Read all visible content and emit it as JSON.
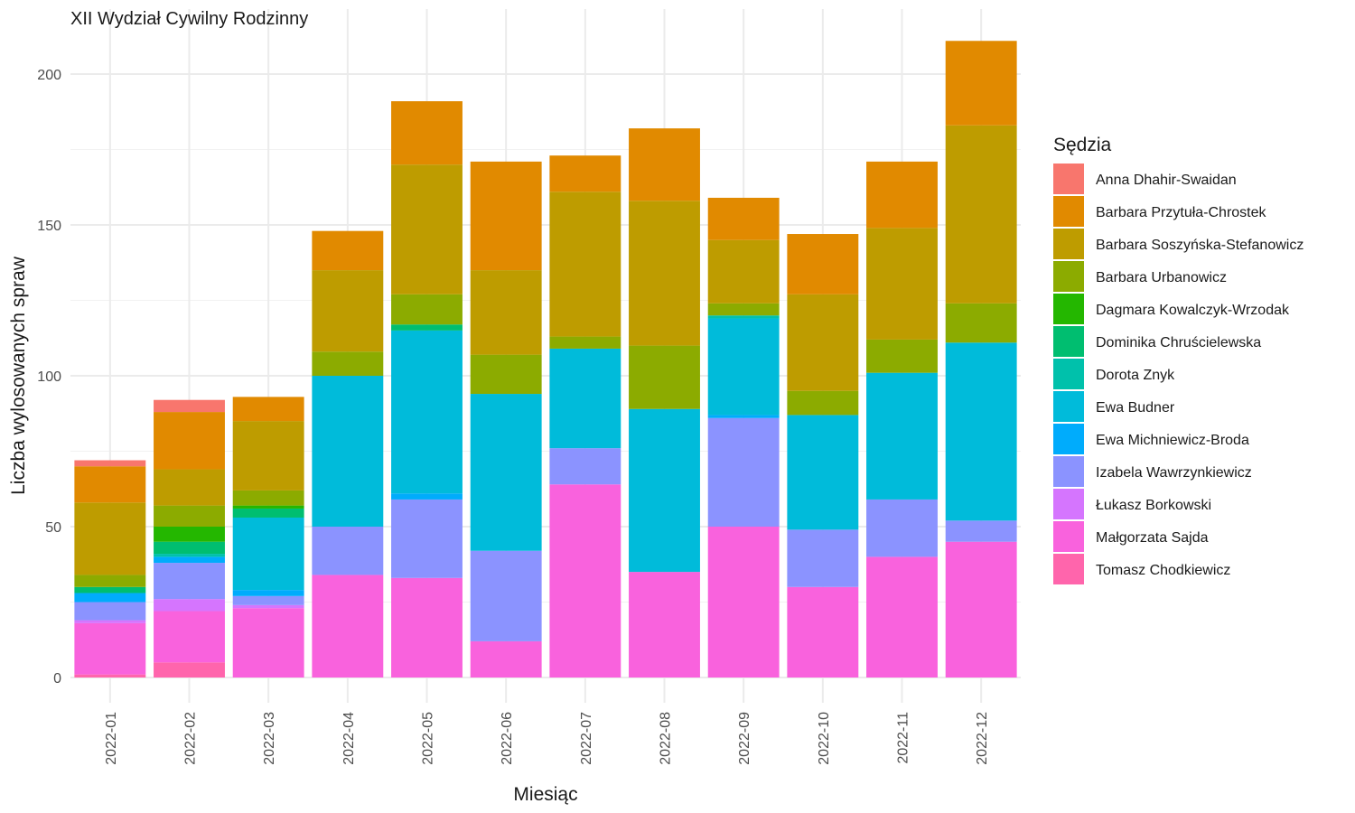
{
  "chart_data": {
    "type": "bar",
    "stacked": true,
    "title": "XII Wydział Cywilny Rodzinny",
    "xlabel": "Miesiąc",
    "ylabel": "Liczba wylosowanych spraw",
    "ylim": [
      -4,
      224
    ],
    "yticks": [
      0,
      50,
      100,
      150,
      200
    ],
    "grid": true,
    "legend_title": "Sędzia",
    "legend_position": "right",
    "categories": [
      "2022-01",
      "2022-02",
      "2022-03",
      "2022-04",
      "2022-05",
      "2022-06",
      "2022-07",
      "2022-08",
      "2022-09",
      "2022-10",
      "2022-11",
      "2022-12"
    ],
    "series": [
      {
        "name": "Anna Dhahir-Swaidan",
        "color": "#F8766D",
        "values": [
          2,
          4,
          0,
          0,
          0,
          0,
          0,
          0,
          0,
          0,
          0,
          0
        ]
      },
      {
        "name": "Barbara Przytuła-Chrostek",
        "color": "#E18A00",
        "values": [
          12,
          19,
          8,
          13,
          21,
          36,
          12,
          24,
          14,
          20,
          22,
          28
        ]
      },
      {
        "name": "Barbara Soszyńska-Stefanowicz",
        "color": "#BE9C00",
        "values": [
          24,
          12,
          23,
          27,
          43,
          28,
          48,
          48,
          21,
          32,
          37,
          59
        ]
      },
      {
        "name": "Barbara Urbanowicz",
        "color": "#8CAB00",
        "values": [
          4,
          7,
          5,
          8,
          10,
          13,
          4,
          21,
          4,
          8,
          11,
          13
        ]
      },
      {
        "name": "Dagmara Kowalczyk-Wrzodak",
        "color": "#24B700",
        "values": [
          0,
          5,
          1,
          0,
          0,
          0,
          0,
          0,
          0,
          0,
          0,
          0
        ]
      },
      {
        "name": "Dominika Chruścielewska",
        "color": "#00BE70",
        "values": [
          2,
          4,
          3,
          0,
          2,
          0,
          0,
          0,
          0,
          0,
          0,
          0
        ]
      },
      {
        "name": "Dorota Znyk",
        "color": "#00C1AB",
        "values": [
          0,
          1,
          0,
          0,
          0,
          0,
          0,
          0,
          1,
          0,
          0,
          0
        ]
      },
      {
        "name": "Ewa Budner",
        "color": "#00BBDA",
        "values": [
          0,
          0,
          24,
          50,
          54,
          52,
          33,
          54,
          32,
          38,
          42,
          59
        ]
      },
      {
        "name": "Ewa Michniewicz-Broda",
        "color": "#00ACFC",
        "values": [
          3,
          2,
          2,
          0,
          2,
          0,
          0,
          0,
          1,
          0,
          0,
          0
        ]
      },
      {
        "name": "Izabela Wawrzynkiewicz",
        "color": "#8B93FF",
        "values": [
          6,
          12,
          3,
          16,
          26,
          30,
          12,
          0,
          36,
          19,
          19,
          7
        ]
      },
      {
        "name": "Łukasz Borkowski",
        "color": "#D575FE",
        "values": [
          1,
          4,
          1,
          0,
          0,
          0,
          0,
          0,
          0,
          0,
          0,
          0
        ]
      },
      {
        "name": "Małgorzata Sajda",
        "color": "#F962DD",
        "values": [
          17,
          17,
          23,
          34,
          33,
          12,
          64,
          35,
          50,
          30,
          40,
          45
        ]
      },
      {
        "name": "Tomasz Chodkiewicz",
        "color": "#FF65AC",
        "values": [
          1,
          5,
          0,
          0,
          0,
          0,
          0,
          0,
          0,
          0,
          0,
          0
        ]
      }
    ]
  }
}
